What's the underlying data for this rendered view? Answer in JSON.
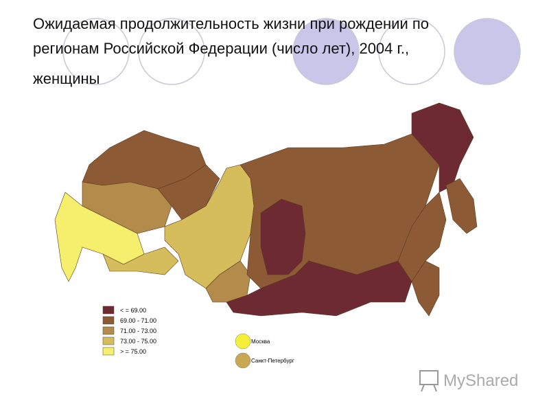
{
  "title": [
    "Ожидаемая продолжительность жизни при рождении по",
    "регионам Российской Федерации (число лет), 2004 г.,",
    "женщины"
  ],
  "legend": [
    {
      "label": "< = 69.00",
      "color": "#6e2a32"
    },
    {
      "label": "69.00 - 71.00",
      "color": "#8c5a35"
    },
    {
      "label": "71.00 - 73.00",
      "color": "#b38c4c"
    },
    {
      "label": "73.00  - 75.00",
      "color": "#d6bd5c"
    },
    {
      "label": "> = 75.00",
      "color": "#f6ef6e"
    }
  ],
  "cities": [
    {
      "label": "Москва",
      "color": "#f6ef3a"
    },
    {
      "label": "Санкт-Петербург",
      "color": "#c8a850"
    }
  ],
  "watermark": "MyShared"
}
